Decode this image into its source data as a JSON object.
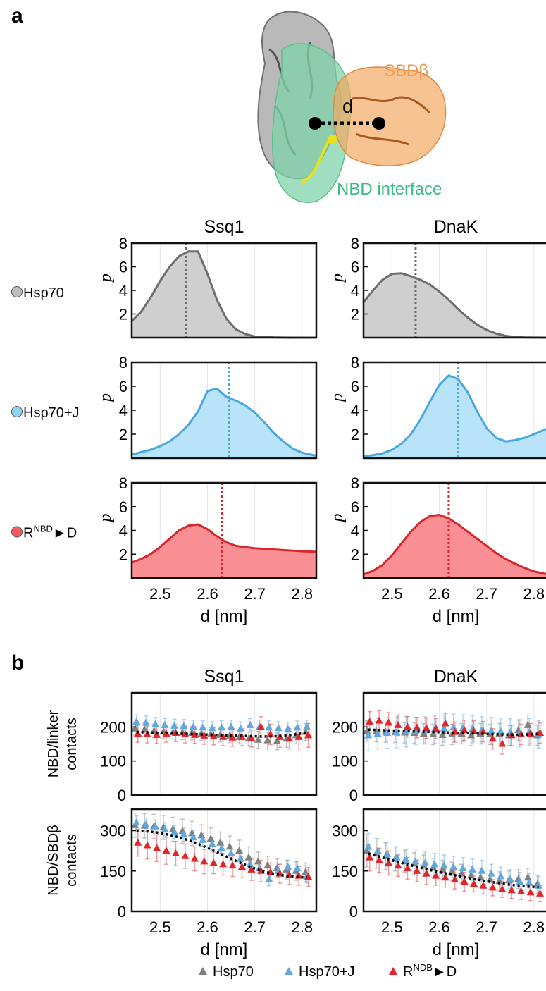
{
  "panel_labels": {
    "a": "a",
    "b": "b"
  },
  "structure": {
    "sbd_label": "SBDβ",
    "nbd_label": "NBD interface",
    "distance_label": "d",
    "colors": {
      "protein": "#9a9a9a",
      "nbd": "#7fd3a8",
      "sbd": "#f4a964",
      "nbd_text": "#3dbb84",
      "sbd_text": "#f19a4e",
      "linker": "#e8e21c"
    }
  },
  "column_titles": [
    "Ssq1",
    "DnaK"
  ],
  "row_labels_a": [
    {
      "text": "Hsp70",
      "sup": "",
      "tail": "",
      "color": "#bdbdbd"
    },
    {
      "text": "Hsp70+J",
      "sup": "",
      "tail": "",
      "color": "#8fd3f2"
    },
    {
      "text": "R",
      "sup": "NBD",
      "tail": "D",
      "color": "#f05a5e"
    }
  ],
  "ylabel_a": "p",
  "xlabel": "d [nm]",
  "ylabel_b": [
    "NBD/linker contacts",
    "NBD/SBDβ contacts"
  ],
  "legend_b": [
    {
      "text": "Hsp70",
      "sup": "",
      "tail": "",
      "color": "#808080"
    },
    {
      "text": "Hsp70+J",
      "sup": "",
      "tail": "",
      "color": "#5fa8e0"
    },
    {
      "text": "R",
      "sup": "NDB",
      "tail": "D",
      "color": "#e0262b"
    }
  ],
  "chart_data": [
    {
      "type": "area",
      "panel": "a",
      "xlim": [
        2.44,
        2.83
      ],
      "ylim": [
        0,
        8
      ],
      "xticks": [
        2.5,
        2.6,
        2.7,
        2.8
      ],
      "yticks": [
        2,
        4,
        6,
        8
      ],
      "grid": true,
      "x": [
        2.44,
        2.46,
        2.48,
        2.5,
        2.52,
        2.54,
        2.56,
        2.58,
        2.6,
        2.62,
        2.64,
        2.66,
        2.68,
        2.7,
        2.72,
        2.74,
        2.76,
        2.78,
        2.8,
        2.83
      ],
      "panels": [
        {
          "column": "Ssq1",
          "condition": "Hsp70",
          "line_color": "#6e6e6e",
          "fill_color": "#cfcfcf",
          "mean": 2.555,
          "values": [
            1.4,
            2.2,
            3.4,
            4.8,
            6.0,
            6.9,
            7.3,
            7.3,
            5.4,
            3.2,
            1.6,
            0.7,
            0.3,
            0.1,
            0.05,
            0.02,
            0.01,
            0,
            0,
            0
          ]
        },
        {
          "column": "DnaK",
          "condition": "Hsp70",
          "line_color": "#6e6e6e",
          "fill_color": "#cfcfcf",
          "mean": 2.55,
          "values": [
            3.0,
            4.0,
            4.9,
            5.4,
            5.45,
            5.2,
            4.9,
            4.5,
            3.9,
            3.2,
            2.4,
            1.7,
            1.1,
            0.65,
            0.35,
            0.15,
            0.06,
            0.02,
            0.01,
            0
          ]
        },
        {
          "column": "Ssq1",
          "condition": "Hsp70+J",
          "line_color": "#4aa8e0",
          "fill_color": "#b8e3f8",
          "mean": 2.645,
          "values": [
            0.3,
            0.5,
            0.7,
            1.0,
            1.4,
            2.0,
            2.8,
            3.9,
            5.6,
            5.8,
            5.1,
            4.8,
            4.4,
            3.8,
            3.0,
            2.1,
            1.4,
            0.8,
            0.45,
            0.2
          ]
        },
        {
          "column": "DnaK",
          "condition": "Hsp70+J",
          "line_color": "#4aa8e0",
          "fill_color": "#b8e3f8",
          "mean": 2.64,
          "values": [
            0.15,
            0.25,
            0.4,
            0.7,
            1.2,
            2.0,
            3.2,
            4.7,
            6.1,
            6.9,
            6.6,
            5.5,
            3.9,
            2.5,
            1.7,
            1.4,
            1.5,
            1.7,
            2.0,
            2.5
          ]
        },
        {
          "column": "Ssq1",
          "condition": "RNBD->D",
          "line_color": "#d9262c",
          "fill_color": "#f98f94",
          "mean": 2.63,
          "values": [
            1.3,
            1.6,
            2.0,
            2.6,
            3.3,
            4.0,
            4.4,
            4.5,
            4.1,
            3.5,
            3.0,
            2.7,
            2.6,
            2.5,
            2.45,
            2.4,
            2.35,
            2.3,
            2.25,
            2.2
          ]
        },
        {
          "column": "DnaK",
          "condition": "RNBD->D",
          "line_color": "#d9262c",
          "fill_color": "#f98f94",
          "mean": 2.62,
          "values": [
            0.3,
            0.6,
            1.1,
            1.9,
            2.9,
            3.9,
            4.7,
            5.2,
            5.3,
            5.0,
            4.5,
            3.9,
            3.3,
            2.7,
            2.1,
            1.6,
            1.2,
            0.85,
            0.55,
            0.3
          ]
        }
      ]
    },
    {
      "type": "scatter",
      "panel": "b",
      "xlim": [
        2.44,
        2.83
      ],
      "xticks": [
        2.5,
        2.6,
        2.7,
        2.8
      ],
      "x": [
        2.45,
        2.47,
        2.49,
        2.51,
        2.53,
        2.55,
        2.57,
        2.59,
        2.61,
        2.63,
        2.65,
        2.67,
        2.69,
        2.71,
        2.73,
        2.75,
        2.77,
        2.79,
        2.81
      ],
      "grid": true,
      "panels": [
        {
          "column": "Ssq1",
          "quantity": "NBD/linker contacts",
          "ylim": [
            0,
            300
          ],
          "yticks": [
            0,
            100,
            200
          ],
          "fit": [
            185,
            184,
            183,
            182,
            181,
            180,
            179,
            178,
            177,
            176,
            175,
            174,
            173,
            172,
            172,
            173,
            175,
            179,
            183
          ],
          "series": [
            {
              "name": "Hsp70",
              "color": "#808080",
              "values": [
                195,
                192,
                188,
                186,
                184,
                183,
                182,
                180,
                178,
                176,
                174,
                170,
                165,
                162,
                160,
                158,
                165,
                175,
                185
              ],
              "errors": [
                20,
                20,
                20,
                20,
                20,
                20,
                20,
                20,
                20,
                20,
                20,
                20,
                20,
                25,
                25,
                25,
                25,
                25,
                25
              ]
            },
            {
              "name": "Hsp70+J",
              "color": "#5fa8e0",
              "values": [
                215,
                212,
                208,
                205,
                203,
                202,
                200,
                198,
                196,
                198,
                200,
                195,
                205,
                200,
                198,
                196,
                194,
                198,
                200
              ],
              "errors": [
                20,
                20,
                20,
                20,
                20,
                20,
                20,
                20,
                20,
                20,
                20,
                20,
                20,
                20,
                20,
                20,
                20,
                20,
                20
              ]
            },
            {
              "name": "RNDB->D",
              "color": "#e0262b",
              "values": [
                180,
                178,
                176,
                180,
                182,
                178,
                176,
                174,
                172,
                170,
                168,
                170,
                166,
                200,
                178,
                170,
                165,
                170,
                175
              ],
              "errors": [
                25,
                25,
                25,
                25,
                25,
                25,
                25,
                25,
                25,
                25,
                25,
                25,
                25,
                30,
                30,
                30,
                30,
                35,
                35
              ]
            }
          ]
        },
        {
          "column": "DnaK",
          "quantity": "NBD/linker contacts",
          "ylim": [
            0,
            300
          ],
          "yticks": [
            0,
            100,
            200
          ],
          "fit": [
            192,
            191,
            190,
            189,
            188,
            187,
            186,
            185,
            184,
            183,
            182,
            181,
            180,
            179,
            178,
            177,
            177,
            178,
            180
          ],
          "series": [
            {
              "name": "Hsp70",
              "color": "#808080",
              "values": [
                188,
                186,
                185,
                184,
                183,
                182,
                180,
                178,
                176,
                178,
                180,
                175,
                180,
                178,
                180,
                175,
                190,
                205,
                175
              ],
              "errors": [
                30,
                30,
                30,
                30,
                30,
                30,
                30,
                30,
                30,
                30,
                30,
                30,
                30,
                30,
                30,
                30,
                30,
                30,
                30
              ]
            },
            {
              "name": "Hsp70+J",
              "color": "#5fa8e0",
              "values": [
                175,
                180,
                182,
                184,
                186,
                188,
                190,
                192,
                195,
                198,
                196,
                193,
                190,
                188,
                186,
                184,
                182,
                185,
                178
              ],
              "errors": [
                45,
                45,
                45,
                45,
                45,
                40,
                40,
                40,
                40,
                40,
                40,
                40,
                40,
                40,
                40,
                40,
                40,
                40,
                40
              ]
            },
            {
              "name": "RNDB->D",
              "color": "#e0262b",
              "values": [
                215,
                218,
                212,
                205,
                200,
                198,
                196,
                195,
                210,
                185,
                190,
                188,
                186,
                165,
                150,
                175,
                178,
                180,
                182
              ],
              "errors": [
                30,
                30,
                30,
                30,
                30,
                30,
                30,
                30,
                30,
                30,
                30,
                30,
                30,
                30,
                30,
                30,
                30,
                30,
                30
              ]
            }
          ]
        },
        {
          "column": "Ssq1",
          "quantity": "NBD/SBDβ contacts",
          "ylim": [
            0,
            380
          ],
          "yticks": [
            0,
            150,
            300
          ],
          "fit": [
            300,
            298,
            294,
            288,
            280,
            270,
            258,
            244,
            228,
            212,
            196,
            180,
            166,
            153,
            143,
            136,
            131,
            128,
            126
          ],
          "series": [
            {
              "name": "Hsp70",
              "color": "#808080",
              "values": [
                320,
                318,
                316,
                312,
                305,
                298,
                290,
                282,
                270,
                255,
                240,
                225,
                200,
                185,
                170,
                160,
                155,
                150,
                145
              ],
              "errors": [
                45,
                45,
                45,
                45,
                45,
                45,
                45,
                40,
                40,
                40,
                40,
                40,
                40,
                35,
                35,
                35,
                35,
                35,
                35
              ]
            },
            {
              "name": "Hsp70+J",
              "color": "#5fa8e0",
              "values": [
                330,
                322,
                315,
                305,
                295,
                285,
                275,
                265,
                250,
                235,
                215,
                195,
                175,
                160,
                120,
                150,
                165,
                160,
                130
              ],
              "errors": [
                25,
                25,
                25,
                25,
                25,
                25,
                25,
                25,
                25,
                25,
                25,
                25,
                25,
                25,
                25,
                25,
                25,
                25,
                25
              ]
            },
            {
              "name": "RNDB->D",
              "color": "#e0262b",
              "values": [
                255,
                245,
                235,
                225,
                215,
                205,
                195,
                185,
                180,
                175,
                170,
                165,
                155,
                150,
                145,
                140,
                135,
                132,
                128
              ],
              "errors": [
                50,
                50,
                50,
                50,
                45,
                45,
                45,
                45,
                40,
                40,
                40,
                40,
                40,
                40,
                35,
                35,
                35,
                35,
                35
              ]
            }
          ]
        },
        {
          "column": "DnaK",
          "quantity": "NBD/SBDβ contacts",
          "ylim": [
            0,
            380
          ],
          "yticks": [
            0,
            150,
            300
          ],
          "fit": [
            215,
            205,
            195,
            185,
            176,
            167,
            158,
            150,
            142,
            135,
            128,
            121,
            115,
            109,
            104,
            99,
            95,
            92,
            90
          ],
          "series": [
            {
              "name": "Hsp70",
              "color": "#808080",
              "values": [
                225,
                215,
                205,
                195,
                186,
                178,
                170,
                162,
                155,
                148,
                140,
                133,
                125,
                118,
                112,
                115,
                120,
                125,
                100
              ],
              "errors": [
                60,
                55,
                50,
                45,
                40,
                40,
                40,
                35,
                35,
                35,
                35,
                35,
                35,
                35,
                35,
                35,
                35,
                35,
                35
              ]
            },
            {
              "name": "Hsp70+J",
              "color": "#5fa8e0",
              "values": [
                240,
                225,
                212,
                200,
                190,
                185,
                180,
                175,
                170,
                165,
                160,
                155,
                150,
                140,
                130,
                120,
                110,
                105,
                95
              ],
              "errors": [
                50,
                45,
                45,
                40,
                40,
                40,
                40,
                40,
                40,
                40,
                40,
                40,
                40,
                35,
                35,
                35,
                35,
                35,
                35
              ]
            },
            {
              "name": "RNDB->D",
              "color": "#e0262b",
              "values": [
                200,
                190,
                180,
                170,
                160,
                150,
                140,
                132,
                125,
                118,
                110,
                102,
                95,
                88,
                82,
                78,
                74,
                70,
                66
              ],
              "errors": [
                50,
                45,
                45,
                40,
                40,
                40,
                40,
                35,
                35,
                35,
                35,
                30,
                30,
                30,
                30,
                30,
                30,
                30,
                30
              ]
            }
          ]
        }
      ]
    }
  ]
}
